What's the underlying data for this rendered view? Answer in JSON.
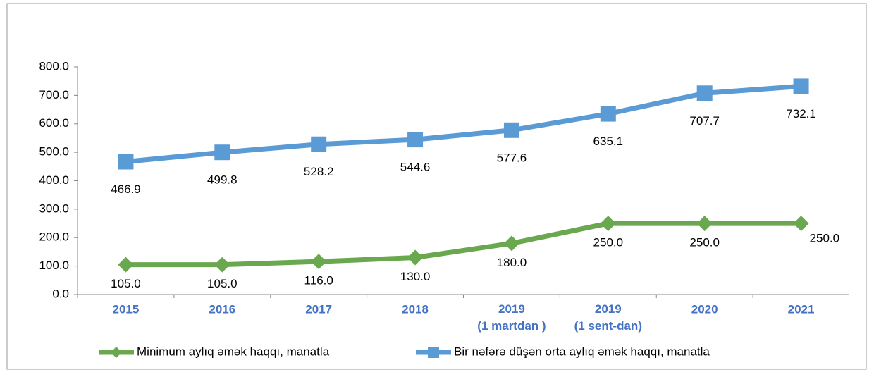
{
  "chart_data": {
    "type": "line",
    "categories": [
      "2015",
      "2016",
      "2017",
      "2018",
      "2019\n(1 martdan )",
      "2019\n(1 sent-dan)",
      "2020",
      "2021"
    ],
    "series": [
      {
        "name": "Minimum aylıq əmək haqqı, manatla",
        "color": "#6aa84f",
        "marker": "diamond",
        "values": [
          105.0,
          105.0,
          116.0,
          130.0,
          180.0,
          250.0,
          250.0,
          250.0
        ],
        "value_labels": [
          "105.0",
          "105.0",
          "116.0",
          "130.0",
          "180.0",
          "250.0",
          "250.0",
          "250.0"
        ]
      },
      {
        "name": "Bir nəfərə düşən orta aylıq əmək haqqı, manatla",
        "color": "#5b9bd5",
        "marker": "square",
        "values": [
          466.9,
          499.8,
          528.2,
          544.6,
          577.6,
          635.1,
          707.7,
          732.1
        ],
        "value_labels": [
          "466.9",
          "499.8",
          "528.2",
          "544.6",
          "577.6",
          "635.1",
          "707.7",
          "732.1"
        ]
      }
    ],
    "ylim": [
      0,
      800
    ],
    "yticks": [
      {
        "value": 0,
        "label": "0.0"
      },
      {
        "value": 100,
        "label": "100.0"
      },
      {
        "value": 200,
        "label": "200.0"
      },
      {
        "value": 300,
        "label": "300.0"
      },
      {
        "value": 400,
        "label": "400.0"
      },
      {
        "value": 500,
        "label": "500.0"
      },
      {
        "value": 600,
        "label": "600.0"
      },
      {
        "value": 700,
        "label": "700.0"
      },
      {
        "value": 800,
        "label": "800.0"
      }
    ],
    "grid": false,
    "legend": "bottom"
  }
}
